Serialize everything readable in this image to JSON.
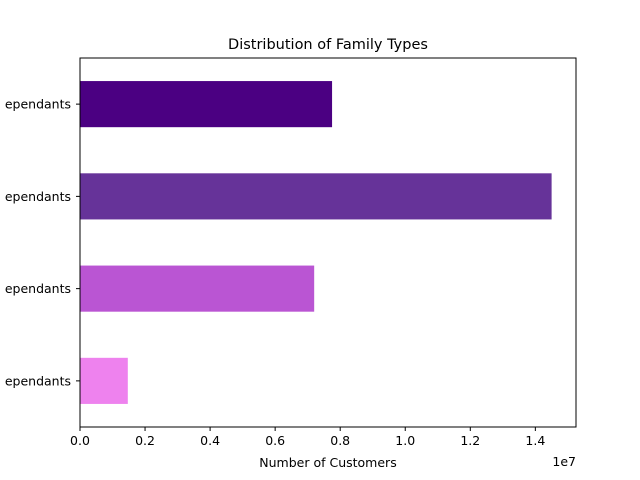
{
  "chart_data": {
    "type": "bar",
    "orientation": "horizontal",
    "title": "Distribution of Family Types",
    "xlabel": "Number of Customers",
    "ylabel": "",
    "x_offset_label": "1e7",
    "xlim": [
      0,
      15250000
    ],
    "x_ticks": [
      0,
      2000000,
      4000000,
      6000000,
      8000000,
      10000000,
      12000000,
      14000000
    ],
    "x_tick_labels": [
      "0.0",
      "0.2",
      "0.4",
      "0.6",
      "0.8",
      "1.0",
      "1.2",
      "1.4"
    ],
    "categories": [
      "ependants",
      "ependants",
      "ependants",
      "ependants"
    ],
    "values": [
      7750000,
      14500000,
      7200000,
      1470000
    ],
    "colors": [
      "#4b0082",
      "#663399",
      "#ba55d3",
      "#ee82ee"
    ],
    "grid": false,
    "legend": "none"
  }
}
